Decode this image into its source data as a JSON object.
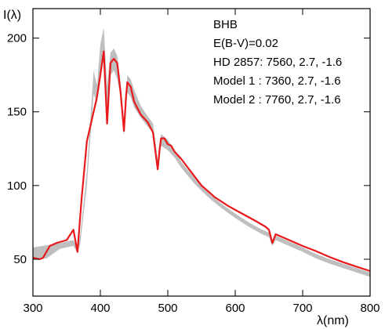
{
  "chart_data": {
    "type": "line",
    "xlabel": "λ(nm)",
    "ylabel": "I(λ)",
    "xlim": [
      300,
      800
    ],
    "ylim": [
      25,
      220
    ],
    "xticks": [
      300,
      400,
      500,
      600,
      700,
      800
    ],
    "yticks": [
      50,
      100,
      150,
      200
    ],
    "grid": false,
    "annotations": [
      "BHB",
      "E(B-V)=0.02",
      "HD 2857: 7560, 2.7, -1.6",
      "Model 1 : 7360, 2.7, -1.6",
      "Model 2 : 7760, 2.7, -1.6"
    ],
    "series": [
      {
        "type": "band",
        "color": "#bfbfbf",
        "upper": [
          [
            300,
            58
          ],
          [
            320,
            59.5
          ],
          [
            340,
            61
          ],
          [
            360,
            63
          ],
          [
            366,
            58
          ],
          [
            370,
            66
          ],
          [
            380,
            110
          ],
          [
            390,
            178
          ],
          [
            395,
            168
          ],
          [
            400,
            196
          ],
          [
            405,
            207
          ],
          [
            410,
            168
          ],
          [
            415,
            190
          ],
          [
            420,
            193
          ],
          [
            425,
            188
          ],
          [
            430,
            170
          ],
          [
            435,
            142
          ],
          [
            440,
            175
          ],
          [
            445,
            172
          ],
          [
            450,
            165
          ],
          [
            460,
            154
          ],
          [
            470,
            147
          ],
          [
            478,
            142
          ],
          [
            485,
            118
          ],
          [
            490,
            135
          ],
          [
            500,
            131
          ],
          [
            510,
            124
          ],
          [
            520,
            116
          ],
          [
            540,
            105
          ],
          [
            560,
            95
          ],
          [
            580,
            87.5
          ],
          [
            600,
            81
          ],
          [
            620,
            75
          ],
          [
            640,
            70
          ],
          [
            650,
            68
          ],
          [
            655,
            62
          ],
          [
            660,
            66
          ],
          [
            680,
            62
          ],
          [
            700,
            58
          ],
          [
            720,
            53.5
          ],
          [
            740,
            50
          ],
          [
            760,
            47
          ],
          [
            780,
            44
          ],
          [
            800,
            41
          ]
        ],
        "lower": [
          [
            300,
            50
          ],
          [
            320,
            50.5
          ],
          [
            340,
            57
          ],
          [
            360,
            59
          ],
          [
            366,
            54
          ],
          [
            370,
            60
          ],
          [
            380,
            100
          ],
          [
            390,
            162
          ],
          [
            395,
            156
          ],
          [
            400,
            178
          ],
          [
            405,
            185
          ],
          [
            410,
            148
          ],
          [
            415,
            175
          ],
          [
            420,
            178
          ],
          [
            425,
            172
          ],
          [
            430,
            160
          ],
          [
            435,
            134
          ],
          [
            440,
            163
          ],
          [
            445,
            160
          ],
          [
            450,
            153
          ],
          [
            460,
            146
          ],
          [
            470,
            140
          ],
          [
            478,
            136
          ],
          [
            485,
            112
          ],
          [
            490,
            127
          ],
          [
            500,
            124
          ],
          [
            510,
            119
          ],
          [
            520,
            112
          ],
          [
            540,
            101
          ],
          [
            560,
            92
          ],
          [
            580,
            84.5
          ],
          [
            600,
            78
          ],
          [
            620,
            72
          ],
          [
            640,
            67
          ],
          [
            650,
            65
          ],
          [
            655,
            59
          ],
          [
            660,
            63
          ],
          [
            680,
            59
          ],
          [
            700,
            55
          ],
          [
            720,
            50.5
          ],
          [
            740,
            47
          ],
          [
            760,
            44
          ],
          [
            780,
            41
          ],
          [
            800,
            38
          ]
        ]
      },
      {
        "type": "line",
        "color": "#e8181b",
        "points": [
          [
            300,
            51
          ],
          [
            310,
            50
          ],
          [
            315,
            51
          ],
          [
            325,
            59
          ],
          [
            335,
            61
          ],
          [
            350,
            63
          ],
          [
            360,
            70
          ],
          [
            366,
            55
          ],
          [
            372,
            90
          ],
          [
            380,
            130
          ],
          [
            385,
            140
          ],
          [
            390,
            150
          ],
          [
            395,
            160
          ],
          [
            400,
            175
          ],
          [
            405,
            191
          ],
          [
            410,
            142
          ],
          [
            415,
            183
          ],
          [
            420,
            186
          ],
          [
            425,
            183
          ],
          [
            430,
            163
          ],
          [
            435,
            137
          ],
          [
            438,
            160
          ],
          [
            440,
            170
          ],
          [
            445,
            167
          ],
          [
            450,
            157
          ],
          [
            460,
            148
          ],
          [
            470,
            143
          ],
          [
            478,
            136
          ],
          [
            485,
            111
          ],
          [
            488,
            125
          ],
          [
            490,
            132
          ],
          [
            495,
            132
          ],
          [
            500,
            128
          ],
          [
            505,
            127
          ],
          [
            510,
            123
          ],
          [
            520,
            118
          ],
          [
            530,
            112
          ],
          [
            540,
            106
          ],
          [
            550,
            100
          ],
          [
            570,
            92
          ],
          [
            590,
            86
          ],
          [
            610,
            81
          ],
          [
            630,
            76
          ],
          [
            645,
            72
          ],
          [
            650,
            70
          ],
          [
            655,
            61
          ],
          [
            660,
            67
          ],
          [
            680,
            63
          ],
          [
            700,
            59
          ],
          [
            720,
            55.5
          ],
          [
            740,
            51.5
          ],
          [
            760,
            48
          ],
          [
            780,
            45
          ],
          [
            800,
            42
          ]
        ]
      }
    ]
  }
}
